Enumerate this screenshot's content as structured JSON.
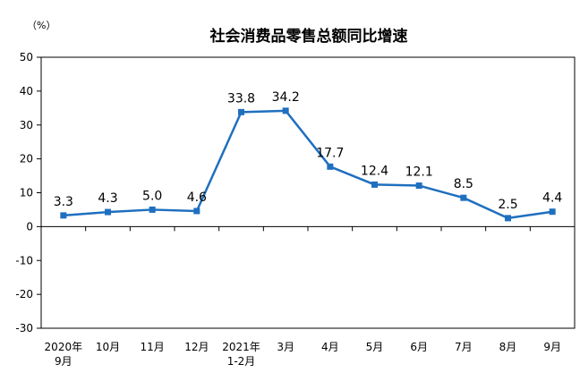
{
  "chart_data": {
    "type": "line",
    "title": "社会消费品零售总额同比增速",
    "unit_label": "（%）",
    "categories": [
      [
        "2020年",
        "9月"
      ],
      [
        "10月"
      ],
      [
        "11月"
      ],
      [
        "12月"
      ],
      [
        "2021年",
        "1-2月"
      ],
      [
        "3月"
      ],
      [
        "4月"
      ],
      [
        "5月"
      ],
      [
        "6月"
      ],
      [
        "7月"
      ],
      [
        "8月"
      ],
      [
        "9月"
      ]
    ],
    "series": [
      {
        "values": [
          3.3,
          4.3,
          5.0,
          4.6,
          33.8,
          34.2,
          17.7,
          12.4,
          12.1,
          8.5,
          2.5,
          4.4
        ],
        "data_labels": [
          "3.3",
          "4.3",
          "5.0",
          "4.6",
          "33.8",
          "34.2",
          "17.7",
          "12.4",
          "12.1",
          "8.5",
          "2.5",
          "4.4"
        ],
        "color": "#1f6fbf"
      }
    ],
    "ylim": [
      -30,
      50
    ],
    "yticks": [
      50,
      40,
      30,
      20,
      10,
      0,
      -10,
      -20,
      -30
    ],
    "grid": false,
    "legend": "none"
  }
}
